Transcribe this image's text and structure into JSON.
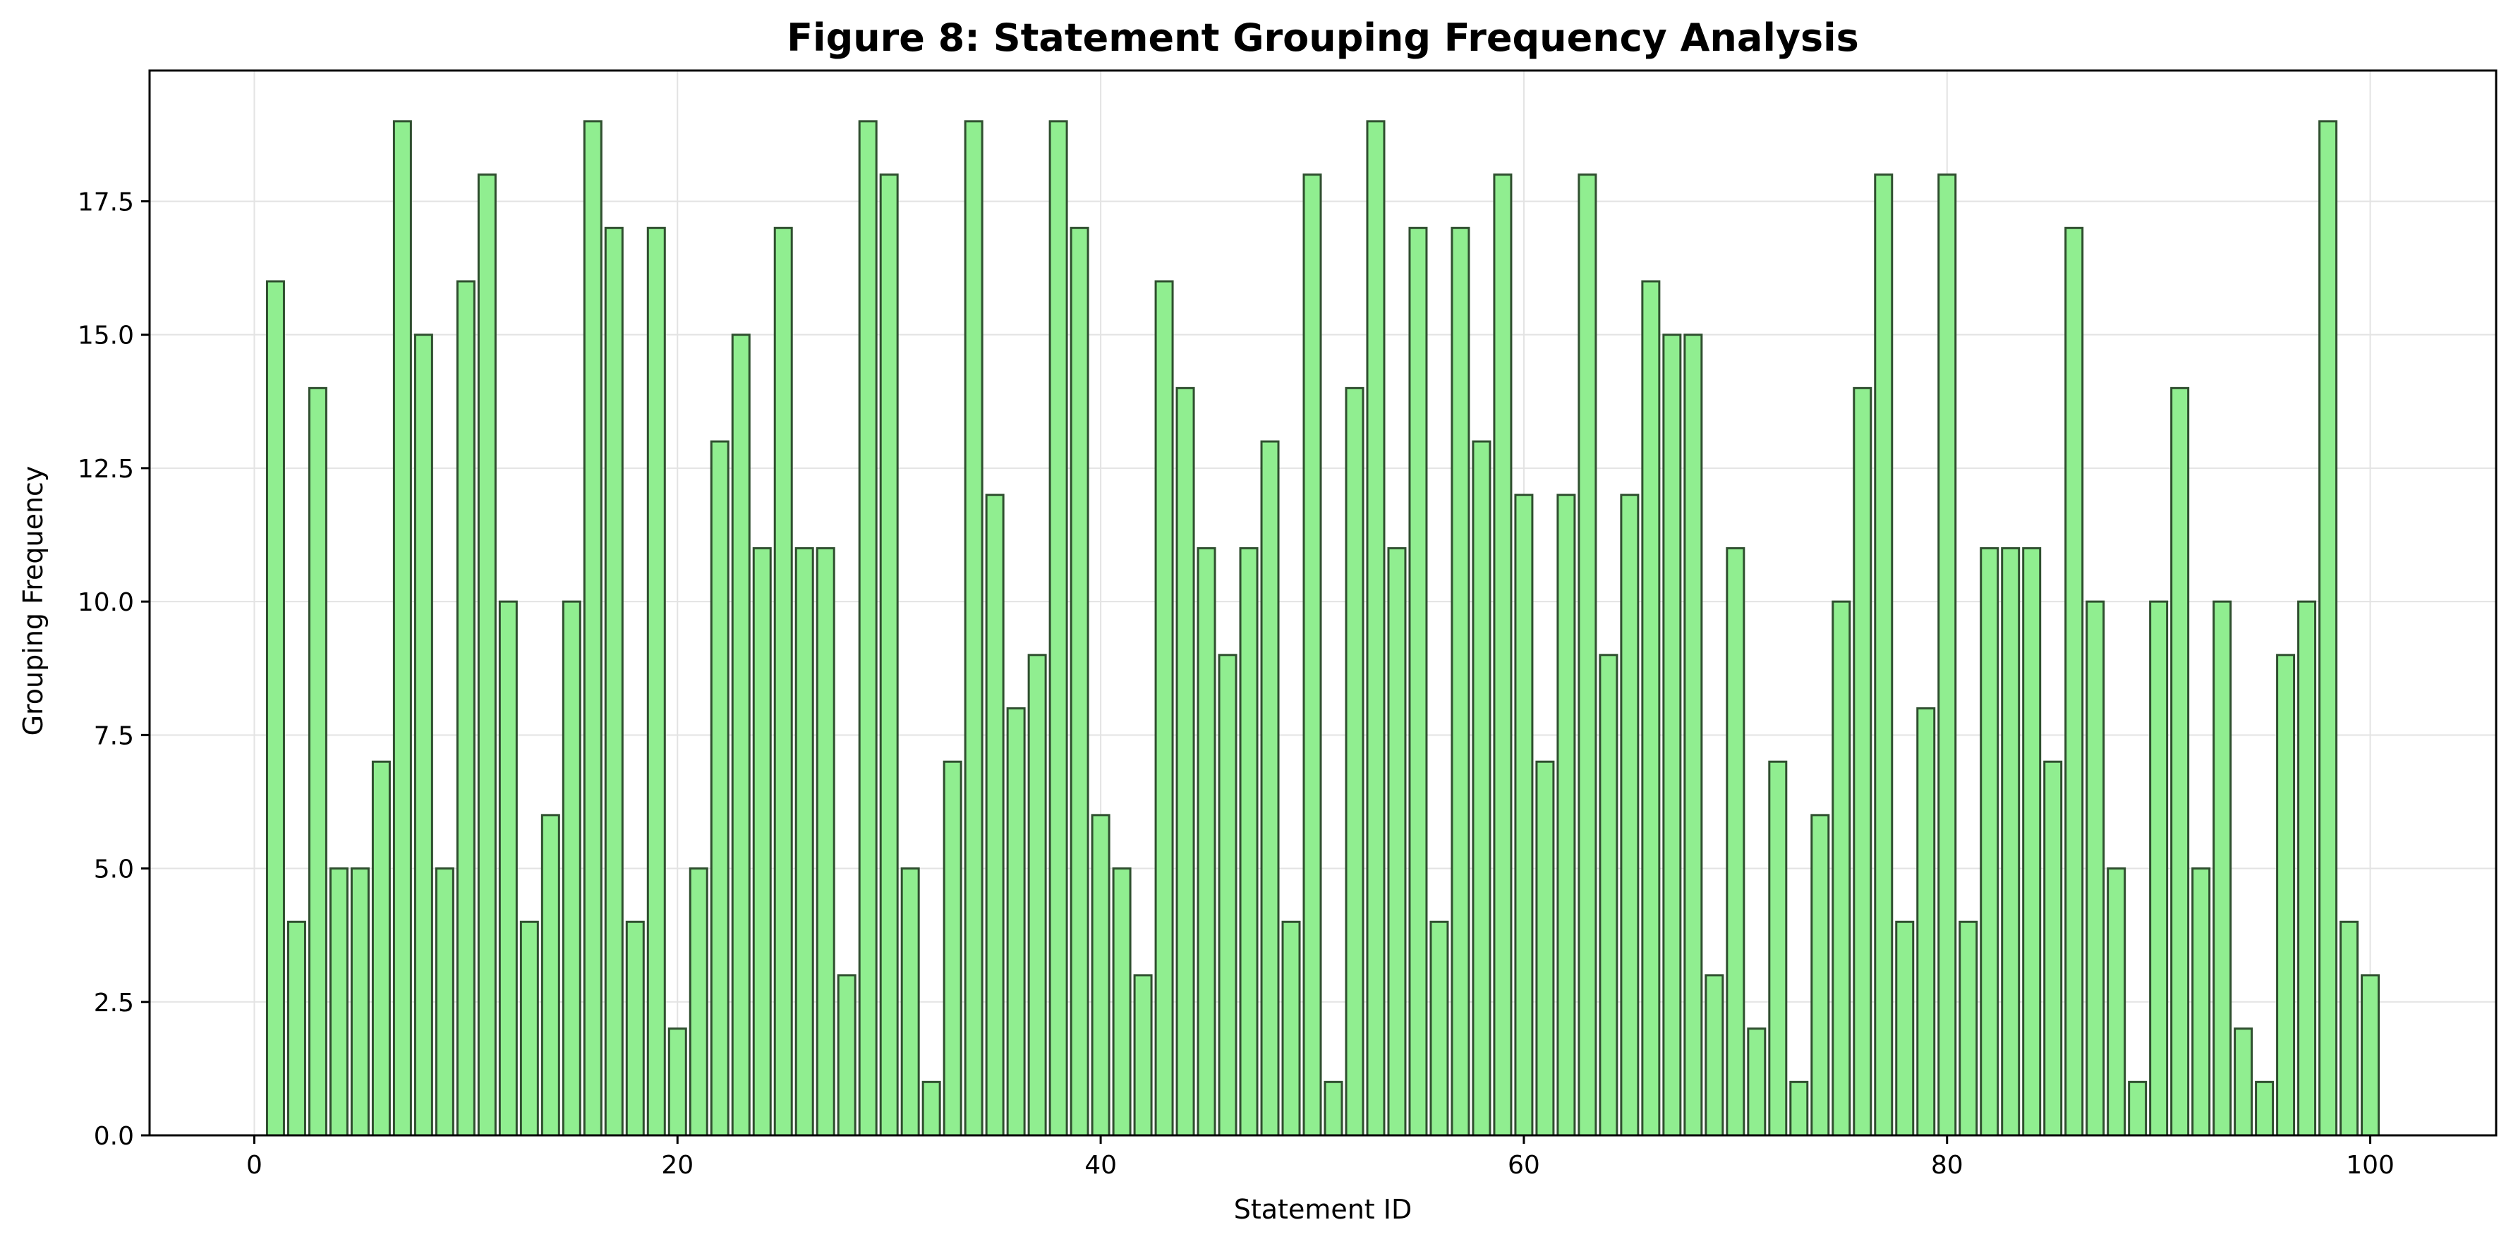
{
  "chart_data": {
    "type": "bar",
    "title": "Figure 8: Statement Grouping Frequency Analysis",
    "xlabel": "Statement ID",
    "ylabel": "Grouping Frequency",
    "x": [
      1,
      2,
      3,
      4,
      5,
      6,
      7,
      8,
      9,
      10,
      11,
      12,
      13,
      14,
      15,
      16,
      17,
      18,
      19,
      20,
      21,
      22,
      23,
      24,
      25,
      26,
      27,
      28,
      29,
      30,
      31,
      32,
      33,
      34,
      35,
      36,
      37,
      38,
      39,
      40,
      41,
      42,
      43,
      44,
      45,
      46,
      47,
      48,
      49,
      50,
      51,
      52,
      53,
      54,
      55,
      56,
      57,
      58,
      59,
      60,
      61,
      62,
      63,
      64,
      65,
      66,
      67,
      68,
      69,
      70,
      71,
      72,
      73,
      74,
      75,
      76,
      77,
      78,
      79,
      80,
      81,
      82,
      83,
      84,
      85,
      86,
      87,
      88,
      89,
      90,
      91,
      92,
      93,
      94,
      95,
      96,
      97,
      98,
      99,
      100
    ],
    "values": [
      16,
      4,
      14,
      5,
      5,
      7,
      19,
      15,
      5,
      16,
      18,
      10,
      4,
      6,
      10,
      19,
      17,
      4,
      17,
      2,
      5,
      13,
      15,
      11,
      17,
      11,
      11,
      3,
      19,
      18,
      5,
      1,
      7,
      19,
      12,
      8,
      9,
      19,
      17,
      6,
      5,
      3,
      16,
      14,
      11,
      9,
      11,
      13,
      4,
      18,
      1,
      14,
      19,
      11,
      17,
      4,
      17,
      13,
      18,
      12,
      7,
      12,
      18,
      9,
      12,
      16,
      15,
      15,
      3,
      11,
      2,
      7,
      1,
      6,
      10,
      14,
      18,
      4,
      8,
      18,
      4,
      11,
      11,
      11,
      7,
      17,
      10,
      5,
      1,
      10,
      14,
      5,
      10,
      2,
      1,
      9,
      10,
      19,
      4,
      3
    ],
    "xlim": [
      -4.95,
      105.95
    ],
    "ylim": [
      0,
      19.95
    ],
    "xticks": [
      "0",
      "20",
      "40",
      "60",
      "80",
      "100"
    ],
    "xtick_values": [
      0,
      20,
      40,
      60,
      80,
      100
    ],
    "yticks": [
      "0.0",
      "2.5",
      "5.0",
      "7.5",
      "10.0",
      "12.5",
      "15.0",
      "17.5"
    ],
    "ytick_values": [
      0,
      2.5,
      5,
      7.5,
      10,
      12.5,
      15,
      17.5
    ],
    "grid": true,
    "bar_color": "#90ee90",
    "bar_edge_color": "#2f4f2f"
  }
}
